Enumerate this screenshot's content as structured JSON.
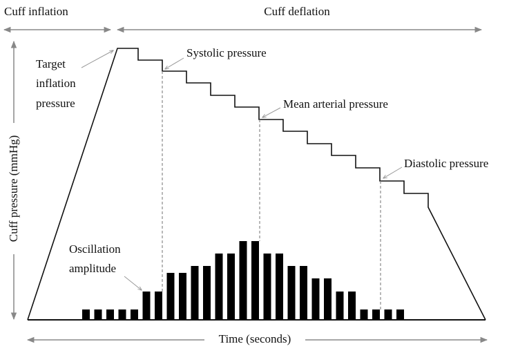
{
  "header": {
    "inflation": "Cuff inflation",
    "deflation": "Cuff deflation"
  },
  "axes": {
    "y": "Cuff pressure (mmHg)",
    "x": "Time (seconds)"
  },
  "annotations": {
    "target": [
      "Target",
      "inflation",
      "pressure"
    ],
    "systolic": "Systolic pressure",
    "mean": "Mean arterial pressure",
    "diastolic": "Diastolic pressure",
    "oscillation": [
      "Oscillation",
      "amplitude"
    ]
  }
}
